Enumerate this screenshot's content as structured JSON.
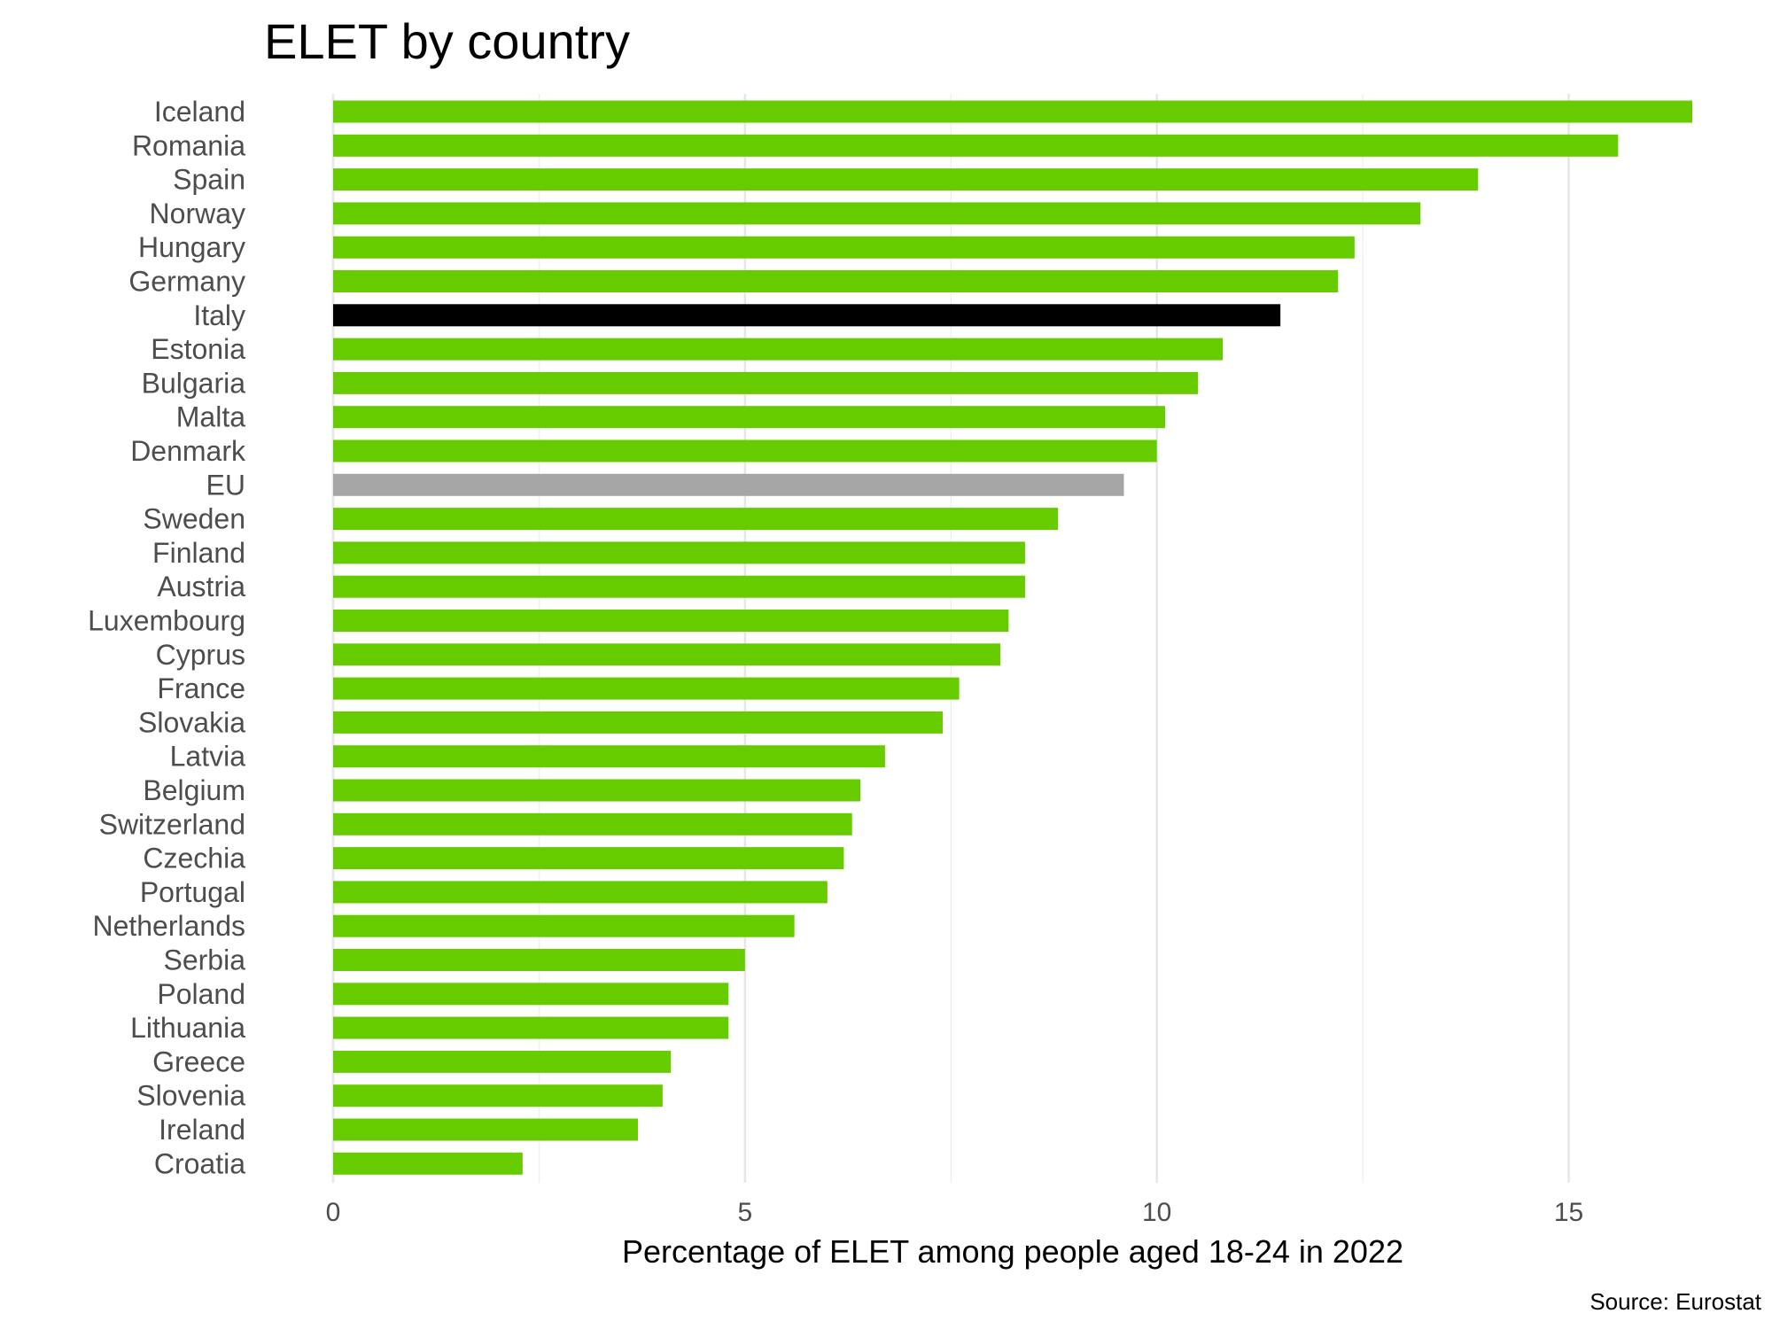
{
  "chart_data": {
    "type": "bar",
    "orientation": "horizontal",
    "title": "ELET by country",
    "xlabel": "Percentage of ELET among people aged 18-24 in 2022",
    "ylabel": "",
    "caption": "Source: Eurostat",
    "xlim": [
      0,
      16.5
    ],
    "xticks": [
      0,
      5,
      10,
      15
    ],
    "grid": true,
    "legend": "none",
    "categories": [
      "Iceland",
      "Romania",
      "Spain",
      "Norway",
      "Hungary",
      "Germany",
      "Italy",
      "Estonia",
      "Bulgaria",
      "Malta",
      "Denmark",
      "EU",
      "Sweden",
      "Finland",
      "Austria",
      "Luxembourg",
      "Cyprus",
      "France",
      "Slovakia",
      "Latvia",
      "Belgium",
      "Switzerland",
      "Czechia",
      "Portugal",
      "Netherlands",
      "Serbia",
      "Poland",
      "Lithuania",
      "Greece",
      "Slovenia",
      "Ireland",
      "Croatia"
    ],
    "values": [
      16.5,
      15.6,
      13.9,
      13.2,
      12.4,
      12.2,
      11.5,
      10.8,
      10.5,
      10.1,
      10.0,
      9.6,
      8.8,
      8.4,
      8.4,
      8.2,
      8.1,
      7.6,
      7.4,
      6.7,
      6.4,
      6.3,
      6.2,
      6.0,
      5.6,
      5.0,
      4.8,
      4.8,
      4.1,
      4.0,
      3.7,
      2.3
    ],
    "colors": {
      "default": "#66cc00",
      "Italy": "#000000",
      "EU": "#a6a6a6"
    }
  }
}
